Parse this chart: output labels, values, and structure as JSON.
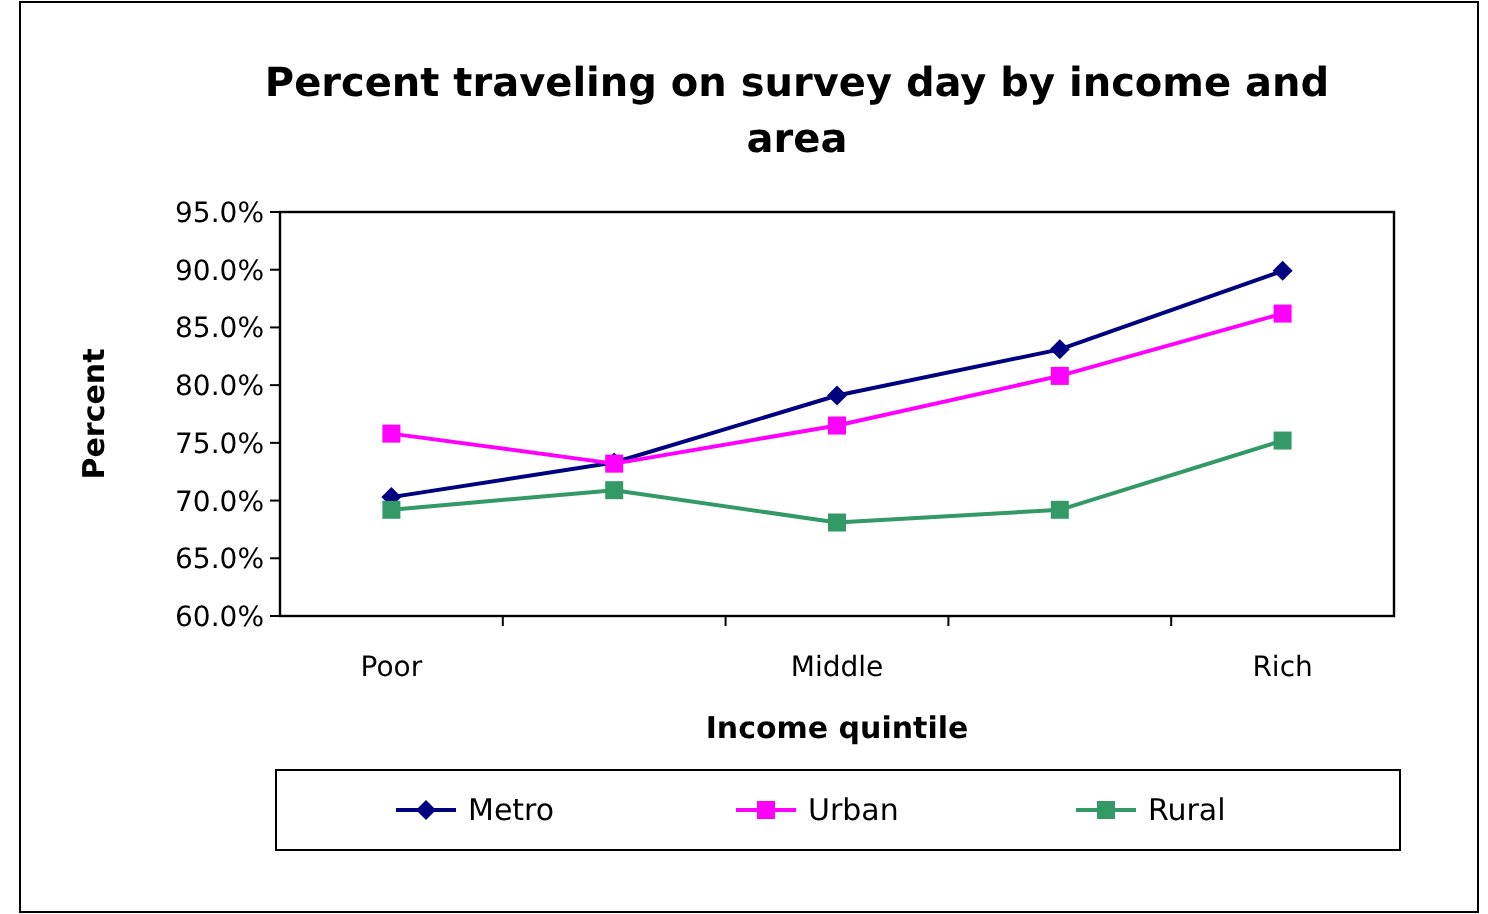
{
  "chart_data": {
    "type": "line",
    "title": "Percent traveling on survey day by income and area",
    "xlabel": "Income quintile",
    "ylabel": "Percent",
    "categories": [
      "Poor",
      null,
      "Middle",
      null,
      "Rich"
    ],
    "series": [
      {
        "name": "Metro",
        "color": "#000080",
        "marker": "diamond",
        "values": [
          70.3,
          73.3,
          79.1,
          83.1,
          89.9
        ]
      },
      {
        "name": "Urban",
        "color": "#ff00ff",
        "marker": "square",
        "values": [
          75.8,
          73.2,
          76.5,
          80.8,
          86.2
        ]
      },
      {
        "name": "Rural",
        "color": "#339966",
        "marker": "square",
        "values": [
          69.2,
          70.9,
          68.1,
          69.2,
          75.2
        ]
      }
    ],
    "ylim": [
      60,
      95
    ],
    "yticks": [
      {
        "value": 60,
        "label": "60.0%"
      },
      {
        "value": 65,
        "label": "65.0%"
      },
      {
        "value": 70,
        "label": "70.0%"
      },
      {
        "value": 75,
        "label": "75.0%"
      },
      {
        "value": 80,
        "label": "80.0%"
      },
      {
        "value": 85,
        "label": "85.0%"
      },
      {
        "value": 90,
        "label": "90.0%"
      },
      {
        "value": 95,
        "label": "95.0%"
      }
    ],
    "grid": false,
    "legend": "bottom",
    "line_style": "solid"
  }
}
